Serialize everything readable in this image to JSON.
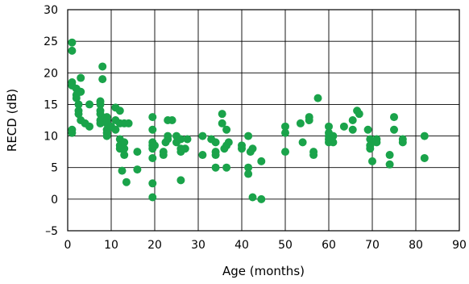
{
  "chart_data": {
    "type": "scatter",
    "title": "",
    "xlabel": "Age (months)",
    "ylabel": "RECD (dB)",
    "xlim": [
      0,
      90
    ],
    "ylim": [
      -5,
      30
    ],
    "x_ticks": [
      0,
      10,
      20,
      30,
      40,
      50,
      60,
      70,
      80,
      90
    ],
    "y_ticks": [
      -5,
      0,
      5,
      10,
      15,
      20,
      25,
      30
    ],
    "grid": "vertical-and-horizontal",
    "legend": "none",
    "marker_color": "#1aa34a",
    "series": [
      {
        "points": [
          [
            1,
            24.8
          ],
          [
            1,
            23.5
          ],
          [
            1,
            18.5
          ],
          [
            1,
            18.0
          ],
          [
            1,
            11.0
          ],
          [
            1,
            10.5
          ],
          [
            2,
            17.5
          ],
          [
            2,
            16.5
          ],
          [
            2,
            16.0
          ],
          [
            2.5,
            15.0
          ],
          [
            2.5,
            14.0
          ],
          [
            2.5,
            13.5
          ],
          [
            3,
            19.2
          ],
          [
            3,
            17.0
          ],
          [
            3,
            12.5
          ],
          [
            4,
            12.0
          ],
          [
            5,
            15.0
          ],
          [
            5,
            11.5
          ],
          [
            7.5,
            15.5
          ],
          [
            7.5,
            15.0
          ],
          [
            7.5,
            14.0
          ],
          [
            7.5,
            13.5
          ],
          [
            7.5,
            12.5
          ],
          [
            7.5,
            12.0
          ],
          [
            8,
            21.0
          ],
          [
            8,
            19.0
          ],
          [
            9,
            13.0
          ],
          [
            9,
            12.5
          ],
          [
            9,
            12.0
          ],
          [
            9,
            11.0
          ],
          [
            9,
            10.5
          ],
          [
            9,
            10.0
          ],
          [
            10,
            11.5
          ],
          [
            11,
            14.5
          ],
          [
            11,
            12.5
          ],
          [
            11,
            11.0
          ],
          [
            12,
            14.0
          ],
          [
            12,
            12.0
          ],
          [
            12,
            9.5
          ],
          [
            12,
            8.5
          ],
          [
            12,
            8.0
          ],
          [
            12.5,
            4.5
          ],
          [
            13,
            12.0
          ],
          [
            13,
            9.0
          ],
          [
            13,
            8.0
          ],
          [
            13,
            7.0
          ],
          [
            13.5,
            2.7
          ],
          [
            14,
            12.0
          ],
          [
            16,
            7.5
          ],
          [
            16,
            4.7
          ],
          [
            19.5,
            13.0
          ],
          [
            19.5,
            11.0
          ],
          [
            19.5,
            9.0
          ],
          [
            19.5,
            8.5
          ],
          [
            19.5,
            8.0
          ],
          [
            19.5,
            6.5
          ],
          [
            19.5,
            2.5
          ],
          [
            19.5,
            0.3
          ],
          [
            20,
            8.5
          ],
          [
            22,
            7.5
          ],
          [
            22,
            7.0
          ],
          [
            22.5,
            9.0
          ],
          [
            23,
            12.5
          ],
          [
            23,
            10.0
          ],
          [
            23,
            9.5
          ],
          [
            24,
            12.5
          ],
          [
            25,
            10.0
          ],
          [
            25,
            9.0
          ],
          [
            26,
            9.5
          ],
          [
            26,
            8.0
          ],
          [
            26,
            7.5
          ],
          [
            26,
            3.0
          ],
          [
            27,
            8.0
          ],
          [
            27.5,
            9.5
          ],
          [
            31,
            10.0
          ],
          [
            31,
            7.0
          ],
          [
            33,
            9.5
          ],
          [
            34,
            9.0
          ],
          [
            34,
            7.5
          ],
          [
            34,
            7.0
          ],
          [
            34,
            5.0
          ],
          [
            35.5,
            13.5
          ],
          [
            35.5,
            12.0
          ],
          [
            36,
            8.0
          ],
          [
            36.5,
            11.0
          ],
          [
            36.5,
            8.5
          ],
          [
            36.5,
            5.0
          ],
          [
            37,
            9.0
          ],
          [
            40,
            8.5
          ],
          [
            40,
            8.0
          ],
          [
            41.5,
            10.0
          ],
          [
            41.5,
            5.0
          ],
          [
            41.5,
            4.0
          ],
          [
            42,
            7.5
          ],
          [
            42.5,
            8.0
          ],
          [
            42.5,
            0.3
          ],
          [
            44.5,
            6.0
          ],
          [
            44.5,
            0.0
          ],
          [
            50,
            11.5
          ],
          [
            50,
            10.5
          ],
          [
            50,
            7.5
          ],
          [
            53.5,
            12.0
          ],
          [
            54,
            9.0
          ],
          [
            55.5,
            13.0
          ],
          [
            55.5,
            12.5
          ],
          [
            56.5,
            7.5
          ],
          [
            56.5,
            7.0
          ],
          [
            57.5,
            16.0
          ],
          [
            60,
            11.5
          ],
          [
            60,
            10.5
          ],
          [
            60,
            10.0
          ],
          [
            60,
            9.5
          ],
          [
            60,
            9.0
          ],
          [
            61,
            10.0
          ],
          [
            61,
            9.0
          ],
          [
            63.5,
            11.5
          ],
          [
            65.5,
            12.5
          ],
          [
            65.5,
            11.0
          ],
          [
            66.5,
            14.0
          ],
          [
            67,
            13.5
          ],
          [
            69,
            11.0
          ],
          [
            69.5,
            9.5
          ],
          [
            69.5,
            8.5
          ],
          [
            69.5,
            8.0
          ],
          [
            70,
            9.0
          ],
          [
            70,
            6.0
          ],
          [
            71,
            9.5
          ],
          [
            71,
            9.0
          ],
          [
            74,
            7.0
          ],
          [
            74,
            5.5
          ],
          [
            75,
            13.0
          ],
          [
            75,
            11.0
          ],
          [
            77,
            9.5
          ],
          [
            77,
            9.0
          ],
          [
            82,
            10.0
          ],
          [
            82,
            6.5
          ]
        ]
      }
    ]
  }
}
